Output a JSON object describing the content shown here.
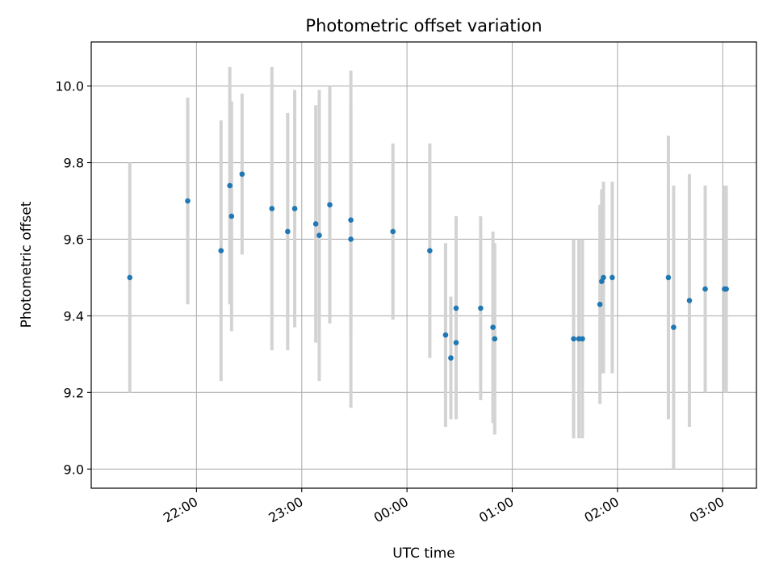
{
  "chart_data": {
    "type": "scatter",
    "title": "Photometric offset variation",
    "xlabel": "UTC time",
    "ylabel": "Photometric offset",
    "x_ticks": [
      "22:00",
      "23:00",
      "00:00",
      "01:00",
      "02:00",
      "03:00"
    ],
    "x_tick_hours": [
      22,
      23,
      24,
      25,
      26,
      27
    ],
    "xlim_hours": [
      21.0,
      27.32
    ],
    "y_ticks": [
      "9.0",
      "9.2",
      "9.4",
      "9.6",
      "9.8",
      "10.0"
    ],
    "ylim": [
      8.95,
      10.115
    ],
    "grid": true,
    "point_color": "#1f77b4",
    "errorbar_color": "#d3d3d3",
    "points": [
      {
        "t": "21:22",
        "y": 9.5,
        "err": 0.3
      },
      {
        "t": "21:55",
        "y": 9.7,
        "err": 0.27
      },
      {
        "t": "22:14",
        "y": 9.57,
        "err": 0.34
      },
      {
        "t": "22:19",
        "y": 9.74,
        "err": 0.31
      },
      {
        "t": "22:20",
        "y": 9.66,
        "err": 0.3
      },
      {
        "t": "22:26",
        "y": 9.77,
        "err": 0.21
      },
      {
        "t": "22:43",
        "y": 9.68,
        "err": 0.37
      },
      {
        "t": "22:52",
        "y": 9.62,
        "err": 0.31
      },
      {
        "t": "22:56",
        "y": 9.68,
        "err": 0.31
      },
      {
        "t": "23:08",
        "y": 9.64,
        "err": 0.31
      },
      {
        "t": "23:10",
        "y": 9.61,
        "err": 0.38
      },
      {
        "t": "23:16",
        "y": 9.69,
        "err": 0.31
      },
      {
        "t": "23:28",
        "y": 9.65,
        "err": 0.3
      },
      {
        "t": "23:28",
        "y": 9.6,
        "err": 0.44
      },
      {
        "t": "23:52",
        "y": 9.62,
        "err": 0.23
      },
      {
        "t": "00:13",
        "y": 9.57,
        "err": 0.28
      },
      {
        "t": "00:22",
        "y": 9.35,
        "err": 0.24
      },
      {
        "t": "00:25",
        "y": 9.29,
        "err": 0.16
      },
      {
        "t": "00:28",
        "y": 9.42,
        "err": 0.24
      },
      {
        "t": "00:28",
        "y": 9.33,
        "err": 0.2
      },
      {
        "t": "00:42",
        "y": 9.42,
        "err": 0.24
      },
      {
        "t": "00:49",
        "y": 9.37,
        "err": 0.25
      },
      {
        "t": "00:50",
        "y": 9.34,
        "err": 0.25
      },
      {
        "t": "01:35",
        "y": 9.34,
        "err": 0.26
      },
      {
        "t": "01:38",
        "y": 9.34,
        "err": 0.26
      },
      {
        "t": "01:40",
        "y": 9.34,
        "err": 0.26
      },
      {
        "t": "01:50",
        "y": 9.43,
        "err": 0.26
      },
      {
        "t": "01:51",
        "y": 9.49,
        "err": 0.24
      },
      {
        "t": "01:52",
        "y": 9.5,
        "err": 0.25
      },
      {
        "t": "01:57",
        "y": 9.5,
        "err": 0.25
      },
      {
        "t": "02:29",
        "y": 9.5,
        "err": 0.37
      },
      {
        "t": "02:32",
        "y": 9.37,
        "err": 0.37
      },
      {
        "t": "02:41",
        "y": 9.44,
        "err": 0.33
      },
      {
        "t": "02:50",
        "y": 9.47,
        "err": 0.27
      },
      {
        "t": "03:01",
        "y": 9.47,
        "err": 0.27
      },
      {
        "t": "03:02",
        "y": 9.47,
        "err": 0.27
      }
    ]
  }
}
